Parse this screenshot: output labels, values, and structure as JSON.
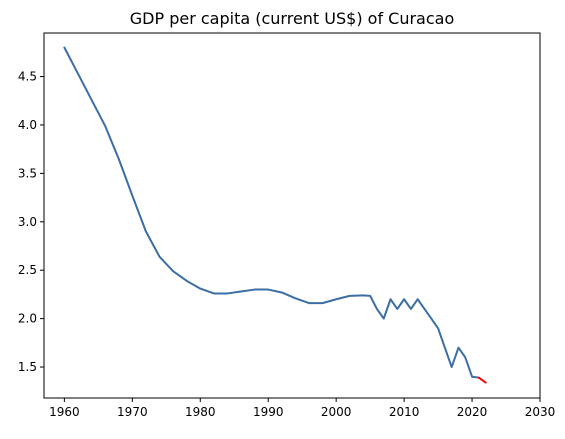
{
  "chart_data": {
    "type": "line",
    "title": "GDP per capita (current US$) of Curacao",
    "xlabel": "",
    "ylabel": "",
    "xlim": [
      1957,
      2030
    ],
    "ylim": [
      1.18,
      4.95
    ],
    "x_ticks": [
      1960,
      1970,
      1980,
      1990,
      2000,
      2010,
      2020,
      2030
    ],
    "y_ticks": [
      1.5,
      2.0,
      2.5,
      3.0,
      3.5,
      4.0,
      4.5
    ],
    "grid": false,
    "legend": "none",
    "series": [
      {
        "color": "#3b6ea5",
        "x": [
          1960,
          1962,
          1964,
          1966,
          1968,
          1970,
          1972,
          1974,
          1976,
          1978,
          1980,
          1982,
          1984,
          1986,
          1988,
          1990,
          1992,
          1994,
          1996,
          1998,
          2000,
          2002,
          2004,
          2005,
          2006,
          2007,
          2008,
          2009,
          2010,
          2011,
          2012,
          2013,
          2014,
          2015,
          2016,
          2017,
          2018,
          2019,
          2020,
          2021
        ],
        "y": [
          4.8,
          4.53,
          4.26,
          3.99,
          3.65,
          3.27,
          2.9,
          2.64,
          2.49,
          2.39,
          2.31,
          2.26,
          2.26,
          2.28,
          2.3,
          2.3,
          2.27,
          2.21,
          2.16,
          2.16,
          2.2,
          2.235,
          2.24,
          2.235,
          2.1,
          2.0,
          2.2,
          2.1,
          2.2,
          2.1,
          2.2,
          2.1,
          2.0,
          1.9,
          1.7,
          1.5,
          1.7,
          1.6,
          1.4,
          1.39
        ]
      },
      {
        "color": "#ff0000",
        "x": [
          2021,
          2022
        ],
        "y": [
          1.39,
          1.34
        ]
      }
    ]
  }
}
